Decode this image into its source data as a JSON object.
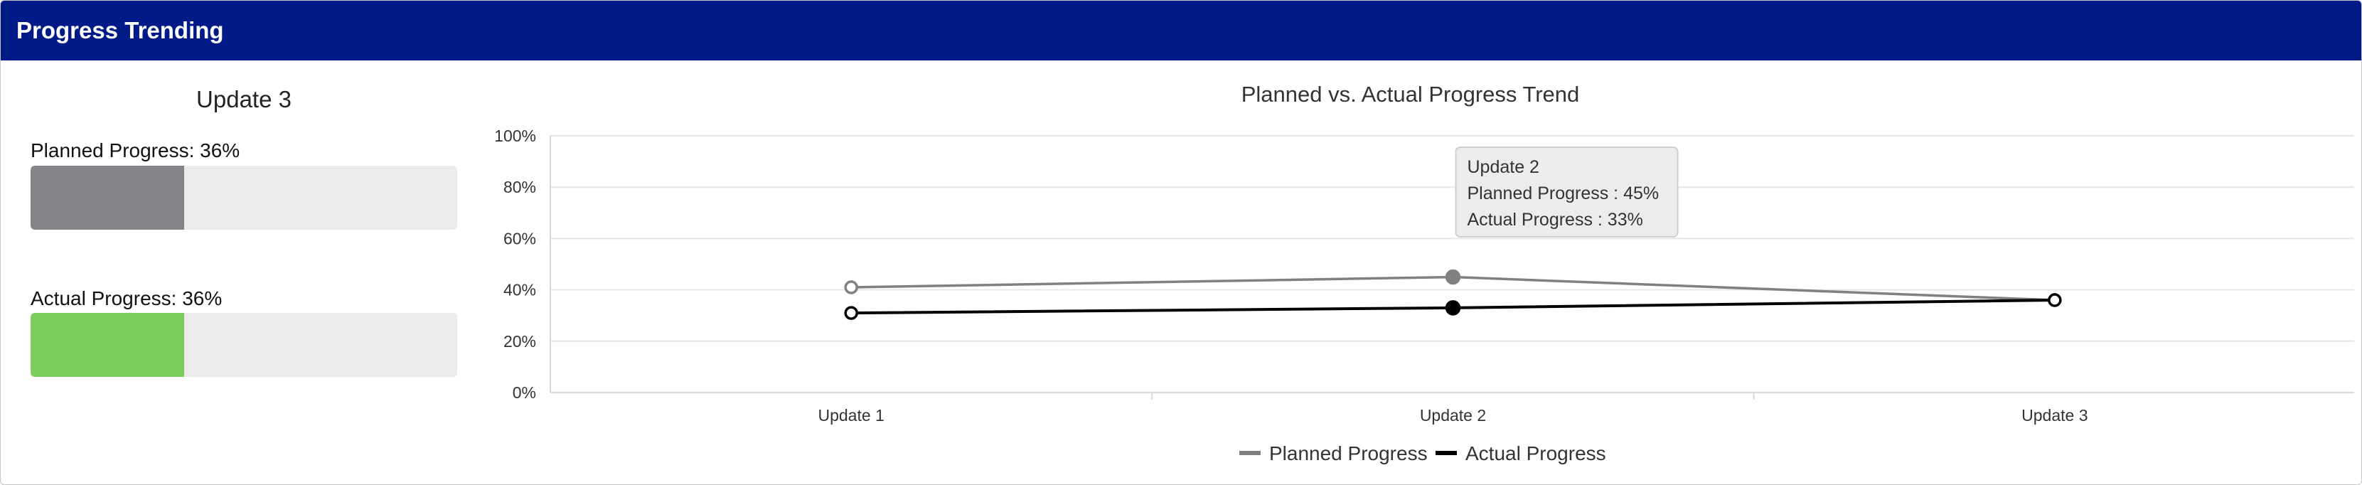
{
  "header": {
    "title": "Progress Trending"
  },
  "summary": {
    "title": "Update 3",
    "planned": {
      "label": "Planned Progress: 36%",
      "value": 0.36,
      "color": "#838388"
    },
    "actual": {
      "label": "Actual Progress: 36%",
      "value": 0.36,
      "color": "#7ecb5e"
    }
  },
  "tooltip": {
    "title": "Update 2",
    "line1": "Planned Progress : 45%",
    "line2": "Actual Progress : 33%"
  },
  "chart_data": {
    "type": "line",
    "title": "Planned vs. Actual Progress Trend",
    "categories": [
      "Update 1",
      "Update 2",
      "Update 3"
    ],
    "series": [
      {
        "name": "Planned Progress",
        "values": [
          41,
          45,
          36
        ],
        "color": "#808080"
      },
      {
        "name": "Actual Progress",
        "values": [
          31,
          33,
          36
        ],
        "color": "#000000"
      }
    ],
    "ylim": [
      0,
      100
    ],
    "yticks": [
      "0%",
      "20%",
      "40%",
      "60%",
      "80%",
      "100%"
    ],
    "ytick_values": [
      0,
      20,
      40,
      60,
      80,
      100
    ],
    "grid": true,
    "legend": "bottom-center",
    "highlighted_category": "Update 2"
  }
}
